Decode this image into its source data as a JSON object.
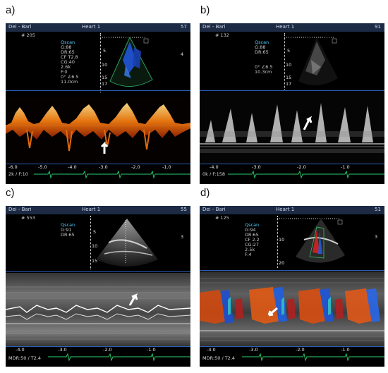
{
  "panels": {
    "a": {
      "label": "a)",
      "header": {
        "left": "Dei - Bari",
        "center": "Heart 1",
        "right": "57"
      },
      "frame": "# 205",
      "info": [
        "Qscan",
        "G:88",
        "DR:65",
        "CF T2.8",
        "CG:40",
        "2.6k",
        "F:0",
        "0°   ∠6.5",
        "11.0cm"
      ],
      "depths": [
        "5",
        "10",
        "15",
        "17"
      ],
      "side_mark": "4",
      "time_ticks": [
        "-6.0",
        "-5.0",
        "-4.0",
        "-3.0",
        "-2.0",
        "-1.0"
      ],
      "footer": "2k  / F:10"
    },
    "b": {
      "label": "b)",
      "header": {
        "left": "Dei - Bari",
        "center": "Heart 1",
        "right": "91"
      },
      "frame": "# 132",
      "info": [
        "Qscan",
        "G:88",
        "DR:65",
        "0°   ∠6.5",
        "10.3cm"
      ],
      "depths": [
        "5",
        "10",
        "15",
        "17"
      ],
      "time_ticks": [
        "-4.0",
        "-3.0",
        "-2.0",
        "-1.0"
      ],
      "footer": "0k  / F:158"
    },
    "c": {
      "label": "c)",
      "header": {
        "left": "Dei - Bari",
        "center": "Heart 1",
        "right": "55"
      },
      "frame": "# 553",
      "info": [
        "Qscan",
        "G:91",
        "DR:65"
      ],
      "depths": [
        "5",
        "10",
        "15"
      ],
      "side_mark": "3",
      "time_ticks": [
        "-4.0",
        "-3.0",
        "-2.0",
        "-1.0"
      ],
      "footer": "MDR:50  / T2.4"
    },
    "d": {
      "label": "d)",
      "header": {
        "left": "Dei - Bari",
        "center": "Heart 1",
        "right": "51"
      },
      "frame": "# 125",
      "info": [
        "Qscan",
        "G:94",
        "DR:65",
        "CF 2.2",
        "CG:27",
        "2.5k",
        "F:4"
      ],
      "depths": [
        "10",
        "20"
      ],
      "side_mark": "3",
      "time_ticks": [
        "-4.0",
        "-3.0",
        "-2.0",
        "-1.0"
      ],
      "footer": "MDR:50  / T2.4"
    }
  }
}
